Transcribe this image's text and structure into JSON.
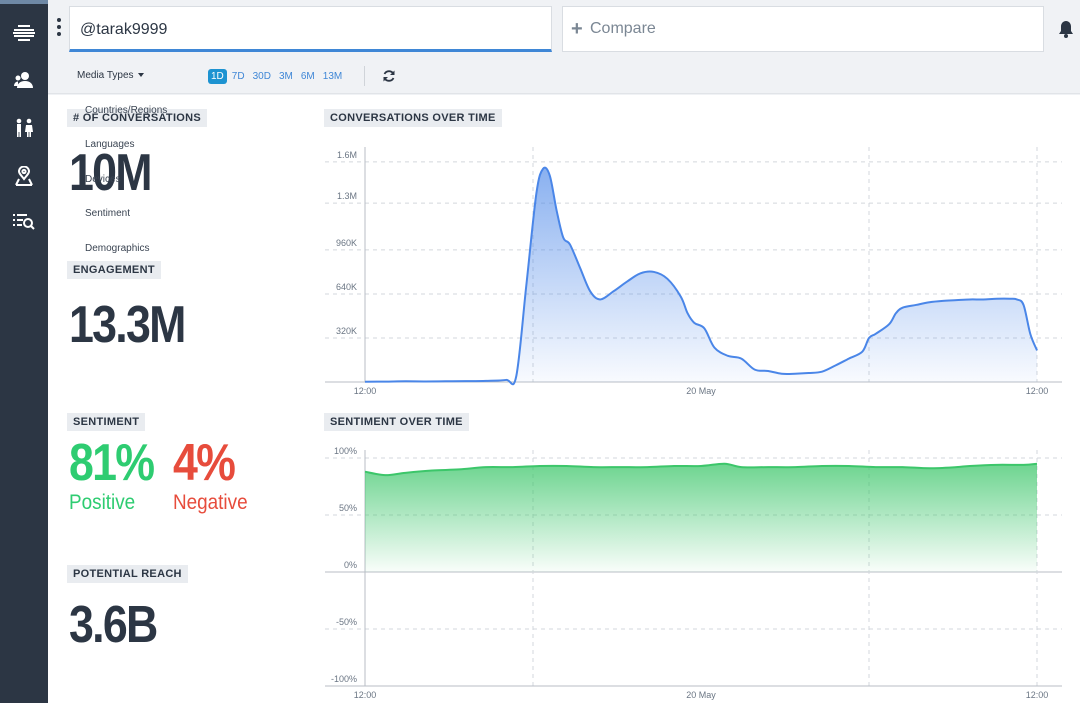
{
  "sidebar": {
    "icons": [
      "stream-icon",
      "users-icon",
      "demographics-icon",
      "map-pin-icon",
      "search-list-icon"
    ]
  },
  "search": {
    "value": "@tarak9999",
    "compare_label": "Compare"
  },
  "toolbar": {
    "media_types_label": "Media Types",
    "ranges": [
      {
        "label": "1D",
        "active": true
      },
      {
        "label": "7D",
        "active": false
      },
      {
        "label": "30D",
        "active": false
      },
      {
        "label": "3M",
        "active": false
      },
      {
        "label": "6M",
        "active": false
      },
      {
        "label": "13M",
        "active": false
      }
    ]
  },
  "dropdown_menu": [
    "Countries/Regions",
    "Languages",
    "Devices",
    "Sentiment",
    "Demographics"
  ],
  "metrics": {
    "conversations_label": "# of Conversations",
    "conversations_value": "10M",
    "engagement_label": "Engagement",
    "engagement_value": "13.3M",
    "sentiment_label": "Sentiment",
    "positive_value": "81%",
    "positive_label": "Positive",
    "negative_value": "4%",
    "negative_label": "Negative",
    "reach_label": "Potential Reach",
    "reach_value": "3.6B"
  },
  "colors": {
    "positive": "#2ecc71",
    "negative": "#e74c3c",
    "conversation_line": "#4a86e8",
    "sentiment_line": "#3cc66a"
  },
  "chart_data": [
    {
      "type": "area",
      "title": "Conversations over time",
      "x_ticks": [
        "12:00",
        "20 May",
        "12:00"
      ],
      "y_ticks": [
        "320K",
        "640K",
        "960K",
        "1.3M",
        "1.6M"
      ],
      "ylim": [
        0,
        1650000
      ],
      "x": [
        0,
        0.03,
        0.06,
        0.09,
        0.12,
        0.15,
        0.18,
        0.21,
        0.225,
        0.24,
        0.255,
        0.265,
        0.275,
        0.285,
        0.295,
        0.305,
        0.32,
        0.335,
        0.35,
        0.37,
        0.39,
        0.41,
        0.43,
        0.45,
        0.47,
        0.48,
        0.49,
        0.505,
        0.52,
        0.54,
        0.56,
        0.58,
        0.6,
        0.62,
        0.64,
        0.66,
        0.68,
        0.7,
        0.72,
        0.74,
        0.75,
        0.76,
        0.78,
        0.79,
        0.8,
        0.82,
        0.84,
        0.86,
        0.88,
        0.9,
        0.92,
        0.94,
        0.96,
        0.97,
        0.98,
        0.99,
        1.0
      ],
      "series": [
        {
          "values": [
            2000,
            3000,
            5000,
            4000,
            5000,
            6000,
            8000,
            15000,
            40000,
            700000,
            1370000,
            1550000,
            1500000,
            1250000,
            1050000,
            1000000,
            830000,
            660000,
            600000,
            660000,
            730000,
            790000,
            800000,
            750000,
            620000,
            500000,
            430000,
            390000,
            250000,
            190000,
            170000,
            90000,
            80000,
            60000,
            60000,
            65000,
            75000,
            120000,
            170000,
            220000,
            320000,
            350000,
            420000,
            500000,
            540000,
            560000,
            580000,
            590000,
            595000,
            600000,
            600000,
            605000,
            605000,
            600000,
            560000,
            350000,
            230000
          ]
        }
      ]
    },
    {
      "type": "area",
      "title": "Sentiment over time",
      "x_ticks": [
        "12:00",
        "20 May",
        "12:00"
      ],
      "y_ticks": [
        "100%",
        "50%",
        "0%",
        "-50%",
        "-100%"
      ],
      "ylim": [
        -100,
        100
      ],
      "x": [
        0,
        0.03,
        0.06,
        0.1,
        0.14,
        0.18,
        0.22,
        0.26,
        0.3,
        0.34,
        0.38,
        0.42,
        0.46,
        0.5,
        0.535,
        0.56,
        0.6,
        0.64,
        0.68,
        0.72,
        0.76,
        0.8,
        0.84,
        0.88,
        0.9,
        0.94,
        0.98,
        1.0
      ],
      "series": [
        {
          "values": [
            88,
            85,
            87,
            89,
            90,
            92,
            92,
            93,
            93,
            92,
            92,
            92,
            93,
            93,
            95,
            92,
            92,
            92,
            93,
            93,
            92,
            92,
            91,
            92,
            93,
            94,
            94,
            95
          ]
        }
      ]
    }
  ]
}
